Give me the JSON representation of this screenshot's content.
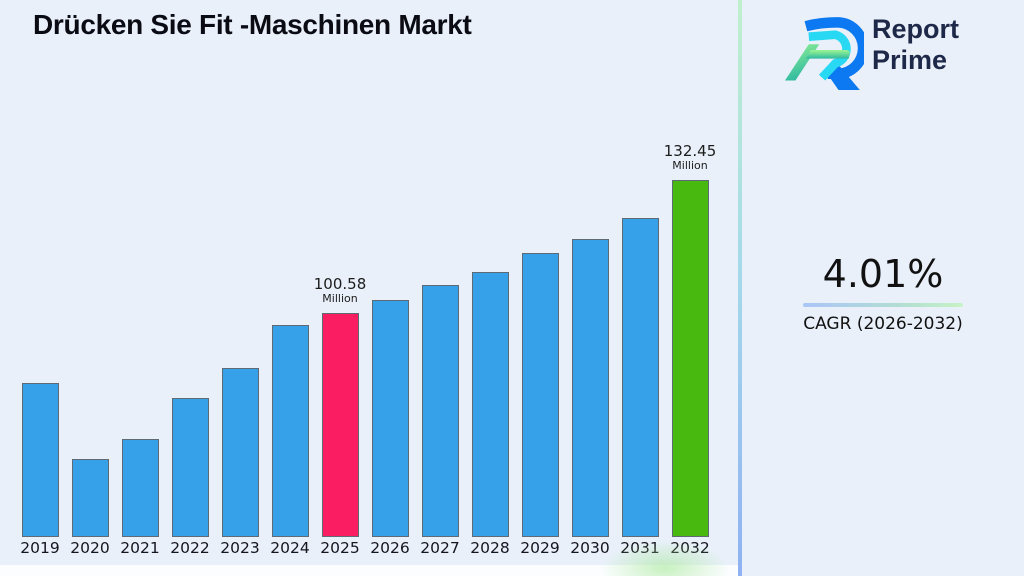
{
  "header": {
    "title": "Drücken Sie Fit -Maschinen Markt"
  },
  "brand": {
    "name_line1": "Report",
    "name_line2": "Prime",
    "text_color": "#1e2949"
  },
  "cagr": {
    "value": "4.01%",
    "label": "CAGR (2026-2032)"
  },
  "chart_data": {
    "type": "bar",
    "title": "Drücken Sie Fit -Maschinen Markt",
    "unit": "Million",
    "xlabel": "",
    "ylabel": "",
    "grid": false,
    "legend": false,
    "ylim": [
      47,
      140
    ],
    "categories": [
      "2019",
      "2020",
      "2021",
      "2022",
      "2023",
      "2024",
      "2025",
      "2026",
      "2027",
      "2028",
      "2029",
      "2030",
      "2031",
      "2032"
    ],
    "bars": [
      {
        "year": "2019",
        "value": 84.0
      },
      {
        "year": "2020",
        "value": 65.8
      },
      {
        "year": "2021",
        "value": 70.4
      },
      {
        "year": "2022",
        "value": 80.4
      },
      {
        "year": "2023",
        "value": 87.6
      },
      {
        "year": "2024",
        "value": 97.7
      },
      {
        "year": "2025",
        "value": 100.58,
        "color": "pink",
        "label": "100.58",
        "label_unit": "Million"
      },
      {
        "year": "2026",
        "value": 103.7
      },
      {
        "year": "2027",
        "value": 107.3
      },
      {
        "year": "2028",
        "value": 110.6
      },
      {
        "year": "2029",
        "value": 115.0
      },
      {
        "year": "2030",
        "value": 118.4
      },
      {
        "year": "2031",
        "value": 123.4
      },
      {
        "year": "2032",
        "value": 132.45,
        "color": "green",
        "label": "132.45",
        "label_unit": "Million"
      }
    ],
    "colors": {
      "blue": "#36a0e8",
      "pink": "#fa1d62",
      "green": "#47b90f",
      "bar_border": "#5f6b74",
      "background": "#e9f0fa"
    }
  }
}
